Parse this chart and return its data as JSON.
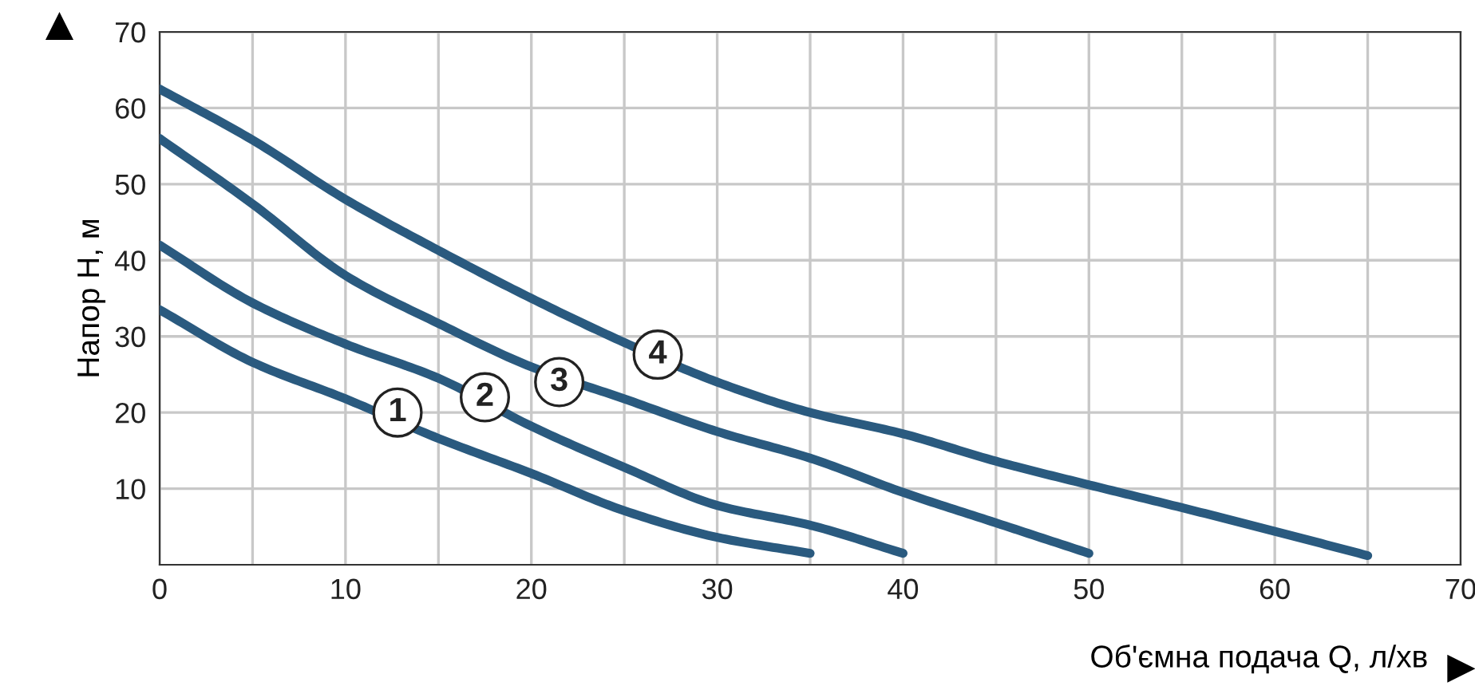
{
  "chart_data": {
    "type": "line",
    "xlabel": "Об'ємна подача Q, л/хв",
    "ylabel": "Напор H, м",
    "xlim": [
      0,
      70
    ],
    "ylim": [
      0,
      70
    ],
    "xticks": [
      0,
      {
        "value": 5,
        "label": null
      },
      10,
      {
        "value": 15,
        "label": null
      },
      20,
      {
        "value": 25,
        "label": null
      },
      30,
      {
        "value": 35,
        "label": null
      },
      40,
      {
        "value": 45,
        "label": null
      },
      50,
      {
        "value": 55,
        "label": null
      },
      60,
      {
        "value": 65,
        "label": null
      },
      70
    ],
    "yticks": [
      10,
      20,
      30,
      40,
      50,
      60,
      70
    ],
    "grid": true,
    "marker": "none",
    "line_style": "solid",
    "series": [
      {
        "color": "#2a5a7f",
        "x": [
          0,
          5,
          10,
          15,
          20,
          25,
          30,
          35
        ],
        "values": [
          33.5,
          26.6,
          21.8,
          16.6,
          12,
          7.1,
          3.6,
          1.5
        ]
      },
      {
        "color": "#2a5a7f",
        "x": [
          0,
          5,
          10,
          15,
          20,
          25,
          30,
          35,
          40
        ],
        "values": [
          42,
          34.4,
          29,
          24.5,
          18.2,
          12.8,
          7.8,
          5.2,
          1.5
        ]
      },
      {
        "color": "#2a5a7f",
        "x": [
          0,
          5,
          10,
          15,
          20,
          25,
          30,
          35,
          40,
          45,
          50
        ],
        "values": [
          56,
          47.4,
          38,
          31.7,
          26,
          21.8,
          17.5,
          14,
          9.5,
          5.5,
          1.5
        ]
      },
      {
        "color": "#2a5a7f",
        "x": [
          0,
          5,
          10,
          15,
          20,
          25,
          30,
          35,
          40,
          45,
          50,
          55,
          60,
          65
        ],
        "values": [
          62.5,
          55.8,
          48,
          41.3,
          35,
          29.2,
          24,
          20,
          17.2,
          13.6,
          10.5,
          7.5,
          4.4,
          1.2
        ]
      }
    ],
    "annotations": [
      {
        "text": "1",
        "x": 12.8,
        "y": 20
      },
      {
        "text": "2",
        "x": 17.5,
        "y": 22
      },
      {
        "text": "3",
        "x": 21.5,
        "y": 24
      },
      {
        "text": "4",
        "x": 26.8,
        "y": 27.6
      }
    ]
  }
}
